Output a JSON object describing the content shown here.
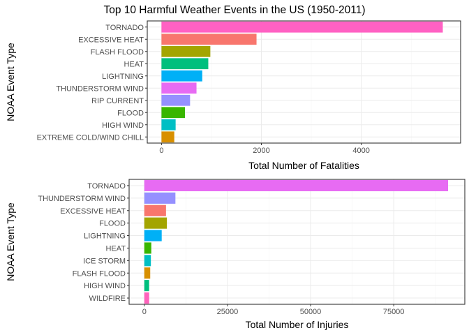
{
  "title": "Top 10 Harmful Weather Events in the US (1950-2011)",
  "chart_data": [
    {
      "type": "bar",
      "orientation": "horizontal",
      "ylabel": "NOAA Event Type",
      "xlabel": "Total Number of Fatalities",
      "xlim": [
        -285,
        5990
      ],
      "xticks": [
        0,
        2000,
        4000
      ],
      "grid": true,
      "categories": [
        "TORNADO",
        "EXCESSIVE HEAT",
        "FLASH FLOOD",
        "HEAT",
        "LIGHTNING",
        "THUNDERSTORM WIND",
        "RIP CURRENT",
        "FLOOD",
        "HIGH WIND",
        "EXTREME COLD/WIND CHILL"
      ],
      "values": [
        5633,
        1903,
        978,
        937,
        816,
        701,
        572,
        470,
        283,
        256
      ],
      "colors": [
        "#FF61C3",
        "#F8766D",
        "#A3A500",
        "#00BF7D",
        "#00B0F6",
        "#E76BF3",
        "#9590FF",
        "#39B600",
        "#00BFC4",
        "#D89000"
      ]
    },
    {
      "type": "bar",
      "orientation": "horizontal",
      "ylabel": "NOAA Event Type",
      "xlabel": "Total Number of Injuries",
      "xlim": [
        -4570,
        96380
      ],
      "xticks": [
        0,
        25000,
        50000,
        75000
      ],
      "grid": true,
      "categories": [
        "TORNADO",
        "THUNDERSTORM WIND",
        "EXCESSIVE HEAT",
        "FLOOD",
        "LIGHTNING",
        "HEAT",
        "ICE STORM",
        "FLASH FLOOD",
        "HIGH WIND",
        "WILDFIRE"
      ],
      "values": [
        91346,
        9353,
        6525,
        6789,
        5230,
        2100,
        1975,
        1777,
        1440,
        1456
      ],
      "colors": [
        "#E76BF3",
        "#9590FF",
        "#F8766D",
        "#A3A500",
        "#00B0F6",
        "#39B600",
        "#00BFC4",
        "#D89000",
        "#00BF7D",
        "#FF62BC"
      ]
    }
  ]
}
